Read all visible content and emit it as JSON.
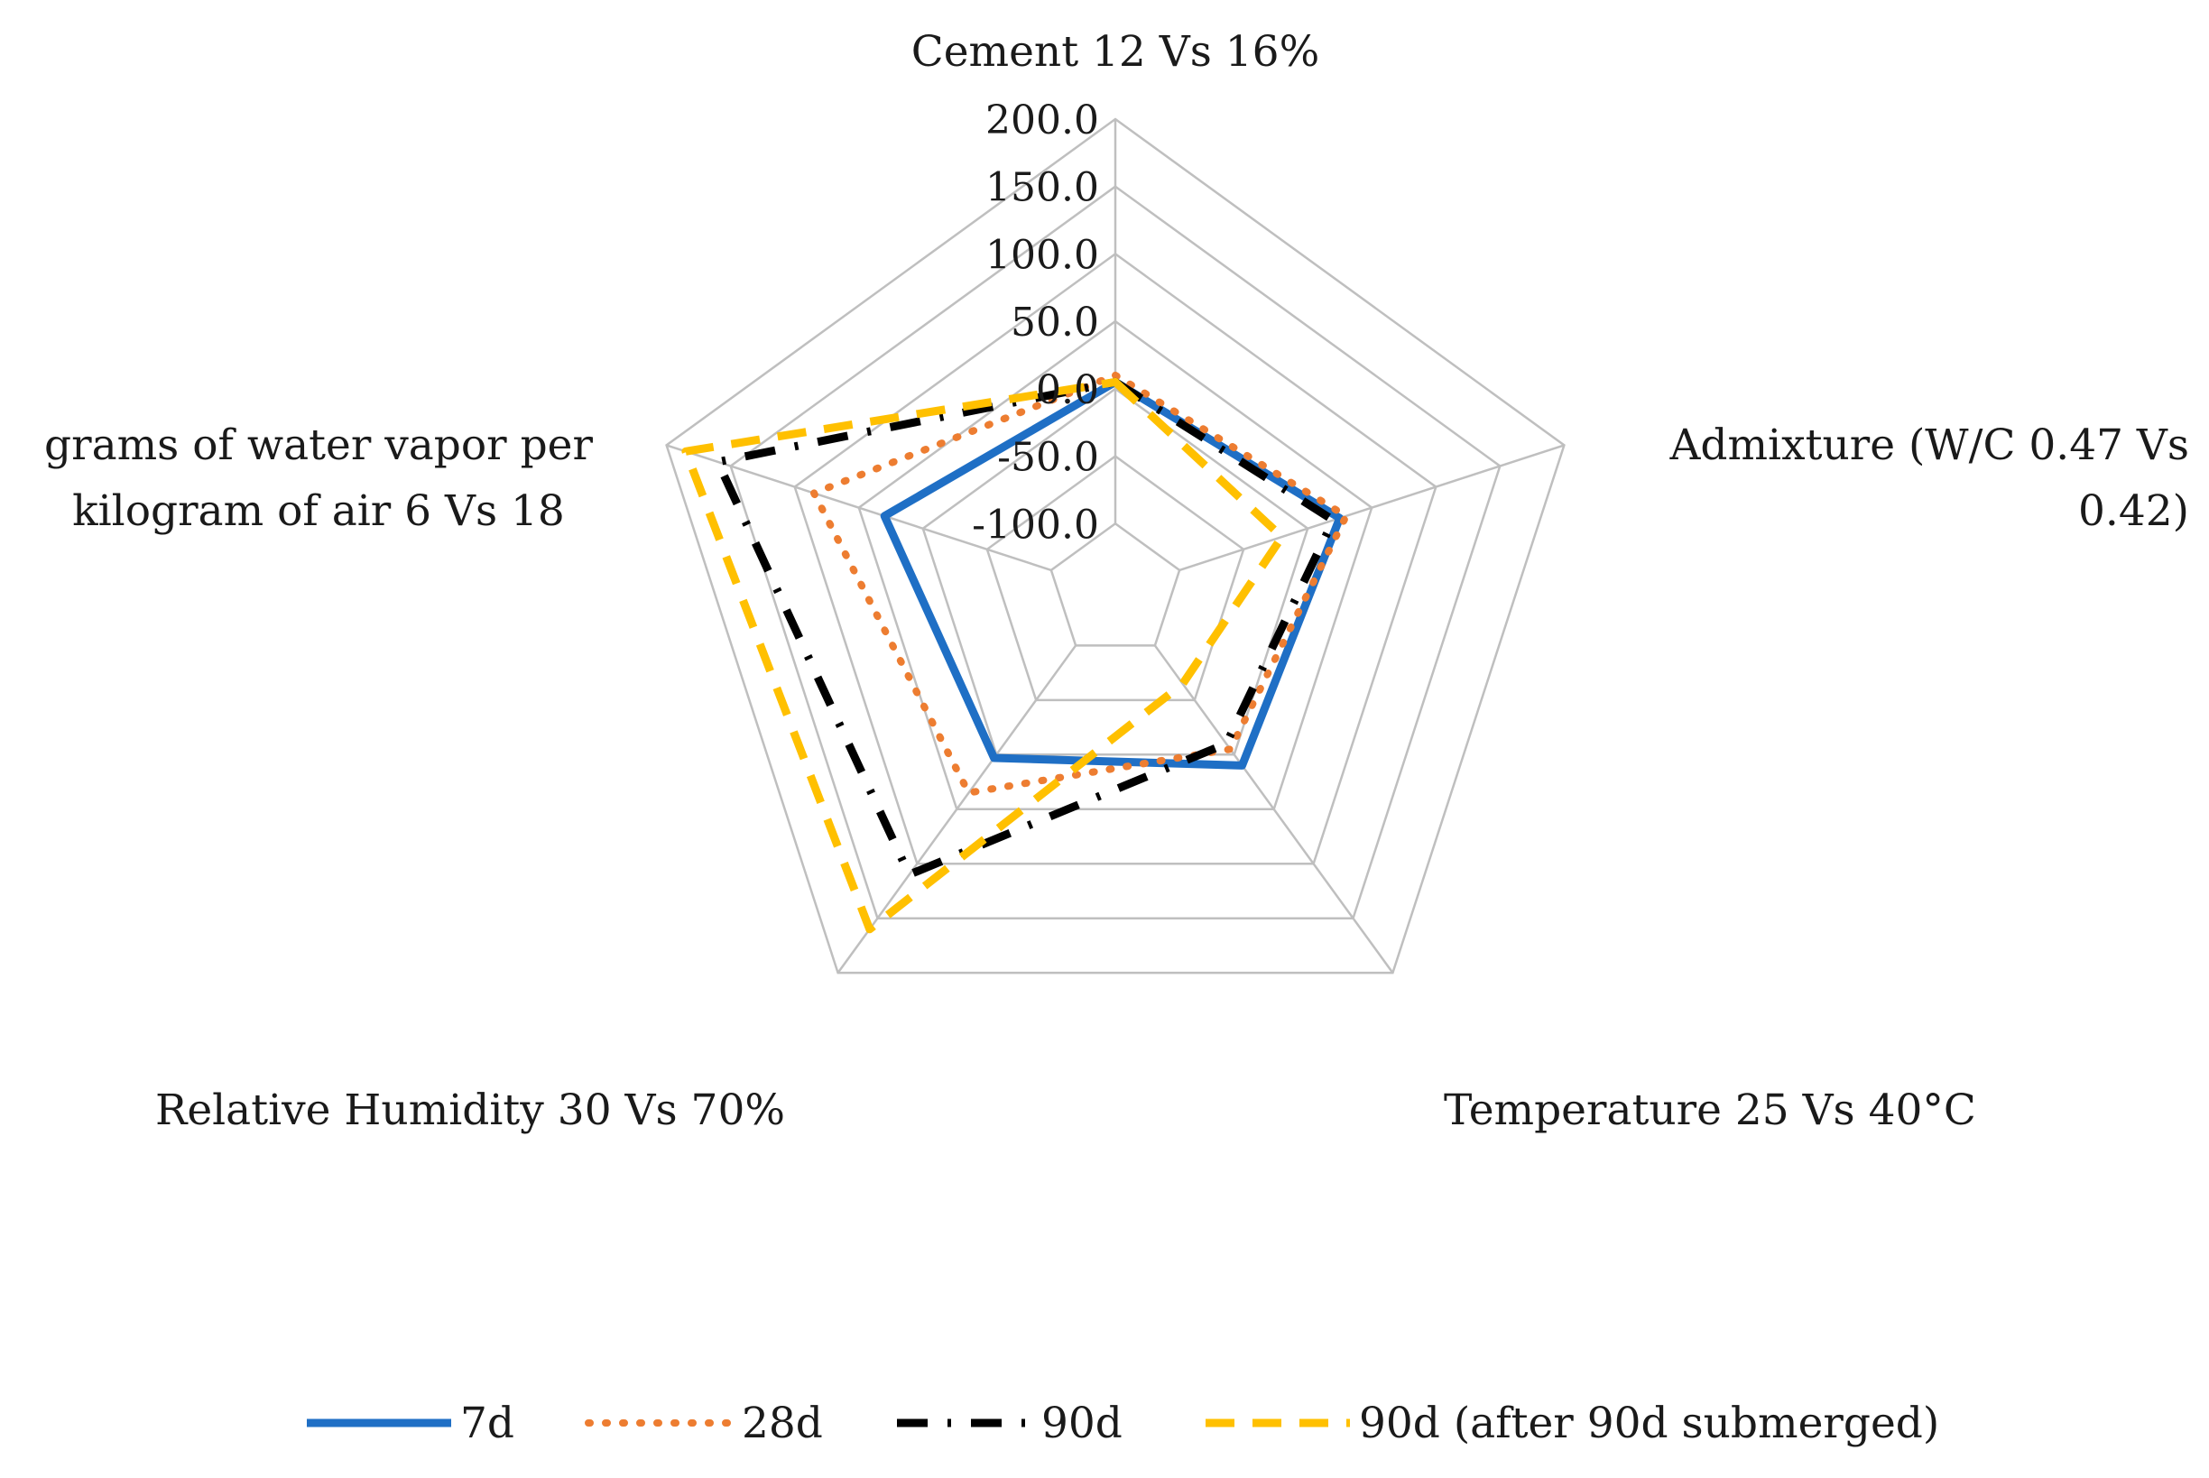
{
  "chart_data": {
    "type": "radar",
    "title": "",
    "axes": [
      {
        "label_lines": [
          "Cement 12 Vs 16%"
        ],
        "anchor": "middle"
      },
      {
        "label_lines": [
          "Admixture (W/C 0.47 Vs",
          "0.42)"
        ],
        "anchor": "end"
      },
      {
        "label_lines": [
          "Temperature 25 Vs 40°C"
        ],
        "anchor": "start"
      },
      {
        "label_lines": [
          "Relative Humidity 30 Vs 70%"
        ],
        "anchor": "end"
      },
      {
        "label_lines": [
          "grams of water vapor per",
          "kilogram of air 6 Vs 18"
        ],
        "anchor": "middle"
      }
    ],
    "rlim": [
      -150,
      200
    ],
    "ticks": [
      -100,
      -50,
      0,
      50,
      100,
      150,
      200
    ],
    "tick_labels": [
      "-100.0",
      "-50.0",
      "0.0",
      "50.0",
      "100.0",
      "150.0",
      "200.0"
    ],
    "series": [
      {
        "name": "7d",
        "values": [
          5,
          25,
          10,
          3,
          30
        ],
        "color": "#1F6FC5",
        "style": "solid"
      },
      {
        "name": "28d",
        "values": [
          10,
          30,
          -5,
          35,
          85
        ],
        "color": "#ED7D31",
        "style": "dotted"
      },
      {
        "name": "90d",
        "values": [
          5,
          20,
          -10,
          110,
          160
        ],
        "color": "#000000",
        "style": "dashdot"
      },
      {
        "name": "90d (after 90d submerged)",
        "values": [
          5,
          -20,
          -65,
          160,
          185
        ],
        "color": "#FFC000",
        "style": "dashed"
      }
    ],
    "legend_position": "bottom",
    "grid": true,
    "grid_color": "#BFBFBF"
  }
}
